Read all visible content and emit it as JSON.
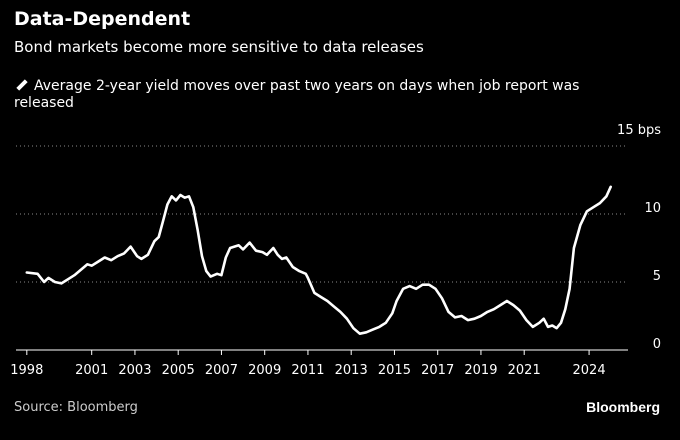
{
  "chart_data": {
    "type": "line",
    "title": "Data-Dependent",
    "subtitle": "Bond markets become more sensitive to data releases",
    "legend": "Average 2-year yield moves over past two years on days when job report was released",
    "y_unit_label": "15 bps",
    "ylim": [
      0,
      15
    ],
    "yticks": [
      0,
      5,
      10,
      15
    ],
    "ytick_labels": [
      "0",
      "5",
      "10",
      "15 bps"
    ],
    "xlim": [
      1997.5,
      2025.8
    ],
    "xticks": [
      1998,
      2001,
      2003,
      2005,
      2007,
      2009,
      2011,
      2013,
      2015,
      2017,
      2019,
      2021,
      2024
    ],
    "xtick_labels": [
      "1998",
      "2001",
      "2003",
      "2005",
      "2007",
      "2009",
      "2011",
      "2013",
      "2015",
      "2017",
      "2019",
      "2021",
      "2024"
    ],
    "gridlines": true,
    "series": [
      {
        "name": "Average 2-year yield moves",
        "color": "#ffffff",
        "x": [
          1998.0,
          1998.5,
          1998.8,
          1999.0,
          1999.3,
          1999.6,
          1999.9,
          2000.2,
          2000.5,
          2000.8,
          2001.0,
          2001.3,
          2001.6,
          2001.9,
          2002.2,
          2002.5,
          2002.8,
          2003.1,
          2003.3,
          2003.6,
          2003.9,
          2004.1,
          2004.3,
          2004.5,
          2004.7,
          2004.9,
          2005.1,
          2005.3,
          2005.5,
          2005.7,
          2005.9,
          2006.1,
          2006.3,
          2006.5,
          2006.8,
          2007.0,
          2007.2,
          2007.4,
          2007.6,
          2007.8,
          2008.0,
          2008.3,
          2008.6,
          2008.9,
          2009.1,
          2009.4,
          2009.6,
          2009.8,
          2010.0,
          2010.3,
          2010.6,
          2010.9,
          2011.0,
          2011.3,
          2011.6,
          2011.9,
          2012.2,
          2012.5,
          2012.8,
          2013.1,
          2013.4,
          2013.7,
          2014.0,
          2014.3,
          2014.6,
          2014.9,
          2015.1,
          2015.4,
          2015.7,
          2016.0,
          2016.3,
          2016.6,
          2016.9,
          2017.2,
          2017.5,
          2017.8,
          2018.1,
          2018.4,
          2018.7,
          2019.0,
          2019.3,
          2019.6,
          2019.9,
          2020.2,
          2020.5,
          2020.8,
          2021.1,
          2021.4,
          2021.7,
          2021.9,
          2022.1,
          2022.3,
          2022.5,
          2022.7,
          2022.9,
          2023.1,
          2023.3,
          2023.6,
          2023.9,
          2024.2,
          2024.5,
          2024.8,
          2025.0
        ],
        "values": [
          5.7,
          5.6,
          5.0,
          5.3,
          5.0,
          4.9,
          5.2,
          5.5,
          5.9,
          6.3,
          6.2,
          6.5,
          6.8,
          6.6,
          6.9,
          7.1,
          7.6,
          6.9,
          6.7,
          7.0,
          8.0,
          8.3,
          9.5,
          10.7,
          11.3,
          11.0,
          11.4,
          11.2,
          11.3,
          10.5,
          8.8,
          6.9,
          5.8,
          5.4,
          5.6,
          5.5,
          6.8,
          7.5,
          7.6,
          7.7,
          7.4,
          7.9,
          7.3,
          7.2,
          7.0,
          7.5,
          7.0,
          6.7,
          6.8,
          6.1,
          5.8,
          5.6,
          5.3,
          4.2,
          3.9,
          3.6,
          3.2,
          2.8,
          2.3,
          1.6,
          1.2,
          1.3,
          1.5,
          1.7,
          2.0,
          2.7,
          3.6,
          4.5,
          4.7,
          4.5,
          4.8,
          4.8,
          4.5,
          3.8,
          2.8,
          2.4,
          2.5,
          2.2,
          2.3,
          2.5,
          2.8,
          3.0,
          3.3,
          3.6,
          3.3,
          2.9,
          2.2,
          1.7,
          2.0,
          2.3,
          1.7,
          1.8,
          1.6,
          2.0,
          3.0,
          4.5,
          7.5,
          9.2,
          10.2,
          10.5,
          10.8,
          11.3,
          12.0
        ]
      }
    ],
    "source": "Source: Bloomberg",
    "brand": "Bloomberg"
  }
}
